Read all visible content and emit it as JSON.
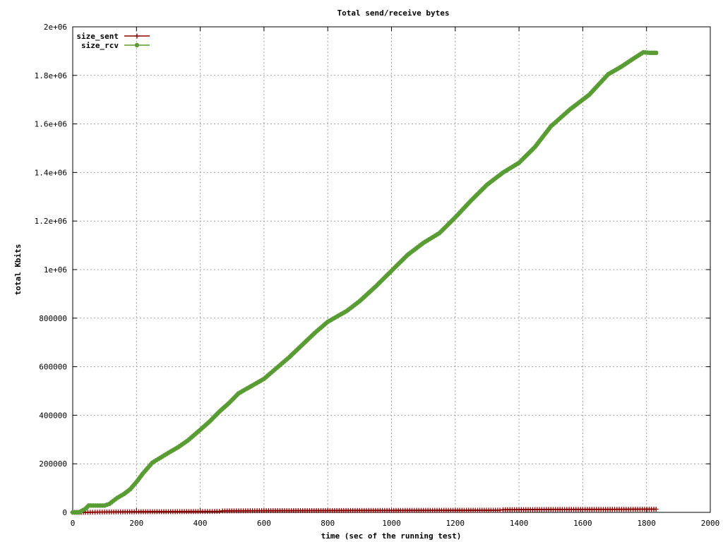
{
  "chart_data": {
    "type": "line",
    "title": "Total send/receive bytes",
    "xlabel": "time (sec of the running test)",
    "ylabel": "total Kbits",
    "xlim": [
      0,
      2000
    ],
    "ylim": [
      0,
      2000000
    ],
    "x_ticks": [
      0,
      200,
      400,
      600,
      800,
      1000,
      1200,
      1400,
      1600,
      1800,
      2000
    ],
    "x_tick_labels": [
      "0",
      "200",
      "400",
      "600",
      "800",
      "1000",
      "1200",
      "1400",
      "1600",
      "1800",
      "2000"
    ],
    "y_ticks": [
      0,
      200000,
      400000,
      600000,
      800000,
      1000000,
      1200000,
      1400000,
      1600000,
      1800000,
      2000000
    ],
    "y_tick_labels": [
      "0",
      "200000",
      "400000",
      "600000",
      "800000",
      "1e+06",
      "1.2e+06",
      "1.4e+06",
      "1.6e+06",
      "1.8e+06",
      "2e+06"
    ],
    "grid": true,
    "legend_position": "top-left",
    "series": [
      {
        "name": "size_sent",
        "color": "#8b0000",
        "marker": "plus",
        "x": [
          0,
          40,
          100,
          200,
          300,
          400,
          460,
          470,
          600,
          800,
          1000,
          1200,
          1340,
          1350,
          1500,
          1700,
          1830
        ],
        "y": [
          0,
          0,
          1500,
          2500,
          3000,
          3500,
          4000,
          6000,
          7000,
          7500,
          8000,
          8500,
          9000,
          11000,
          12000,
          12500,
          13000
        ]
      },
      {
        "name": "size_rcv",
        "color": "#5a9c34",
        "marker": "circle",
        "x": [
          0,
          20,
          40,
          50,
          100,
          115,
          140,
          160,
          180,
          200,
          220,
          250,
          275,
          300,
          330,
          360,
          400,
          430,
          460,
          490,
          520,
          560,
          600,
          640,
          680,
          720,
          760,
          800,
          860,
          900,
          950,
          1000,
          1050,
          1100,
          1150,
          1200,
          1250,
          1300,
          1350,
          1400,
          1450,
          1500,
          1560,
          1620,
          1680,
          1720,
          1760,
          1790,
          1810,
          1830
        ],
        "y": [
          0,
          0,
          15000,
          28000,
          28000,
          35000,
          60000,
          75000,
          95000,
          125000,
          160000,
          205000,
          225000,
          245000,
          268000,
          295000,
          340000,
          375000,
          415000,
          450000,
          490000,
          520000,
          550000,
          595000,
          640000,
          690000,
          740000,
          785000,
          830000,
          870000,
          930000,
          995000,
          1060000,
          1110000,
          1150000,
          1215000,
          1285000,
          1350000,
          1400000,
          1440000,
          1505000,
          1590000,
          1660000,
          1720000,
          1805000,
          1835000,
          1870000,
          1895000,
          1893000,
          1893000
        ]
      }
    ]
  }
}
